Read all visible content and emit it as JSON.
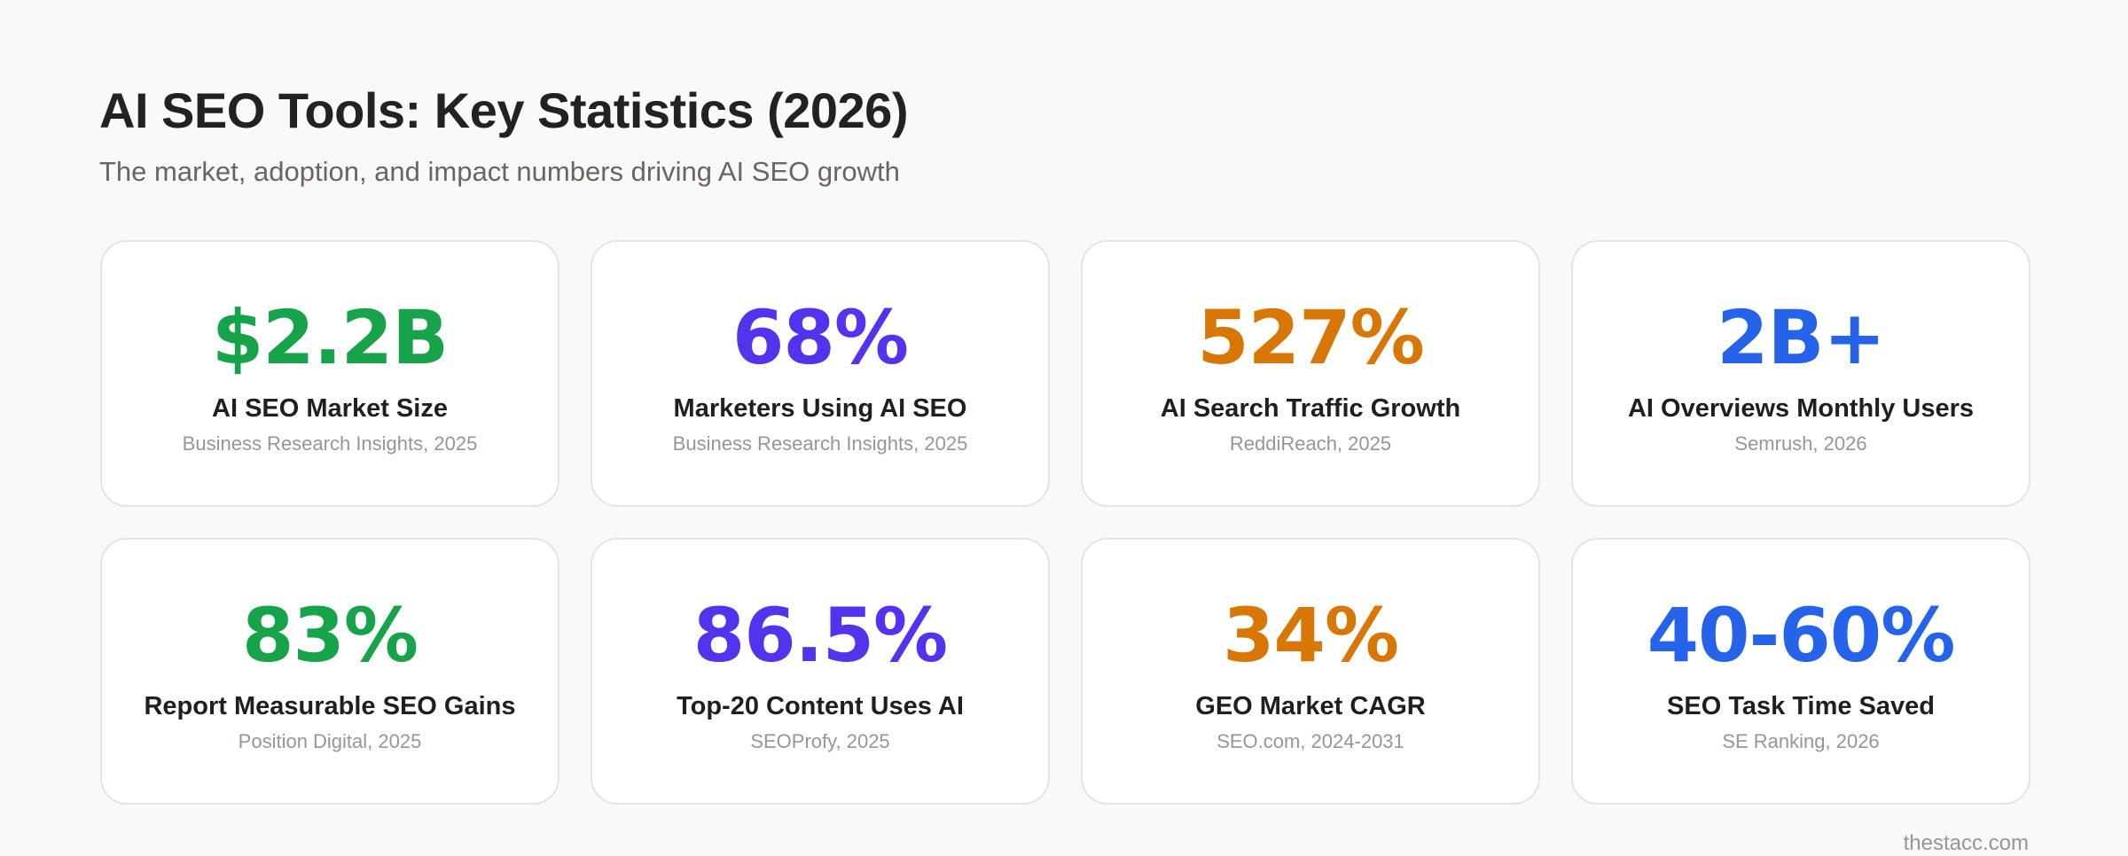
{
  "header": {
    "title": "AI SEO Tools: Key Statistics (2026)",
    "subtitle": "The market, adoption, and impact numbers driving AI SEO growth"
  },
  "cards": [
    {
      "value": "$2.2B",
      "label": "AI SEO Market Size",
      "source": "Business Research Insights, 2025",
      "color": "#16a34a"
    },
    {
      "value": "68%",
      "label": "Marketers Using AI SEO",
      "source": "Business Research Insights, 2025",
      "color": "#5433ee"
    },
    {
      "value": "527%",
      "label": "AI Search Traffic Growth",
      "source": "ReddiReach, 2025",
      "color": "#d97706"
    },
    {
      "value": "2B+",
      "label": "AI Overviews Monthly Users",
      "source": "Semrush, 2026",
      "color": "#2563eb"
    },
    {
      "value": "83%",
      "label": "Report Measurable SEO Gains",
      "source": "Position Digital, 2025",
      "color": "#16a34a"
    },
    {
      "value": "86.5%",
      "label": "Top-20 Content Uses AI",
      "source": "SEOProfy, 2025",
      "color": "#5433ee"
    },
    {
      "value": "34%",
      "label": "GEO Market CAGR",
      "source": "SEO.com, 2024-2031",
      "color": "#d97706"
    },
    {
      "value": "40-60%",
      "label": "SEO Task Time Saved",
      "source": "SE Ranking, 2026",
      "color": "#2563eb"
    }
  ],
  "footer": "thestacc.com"
}
